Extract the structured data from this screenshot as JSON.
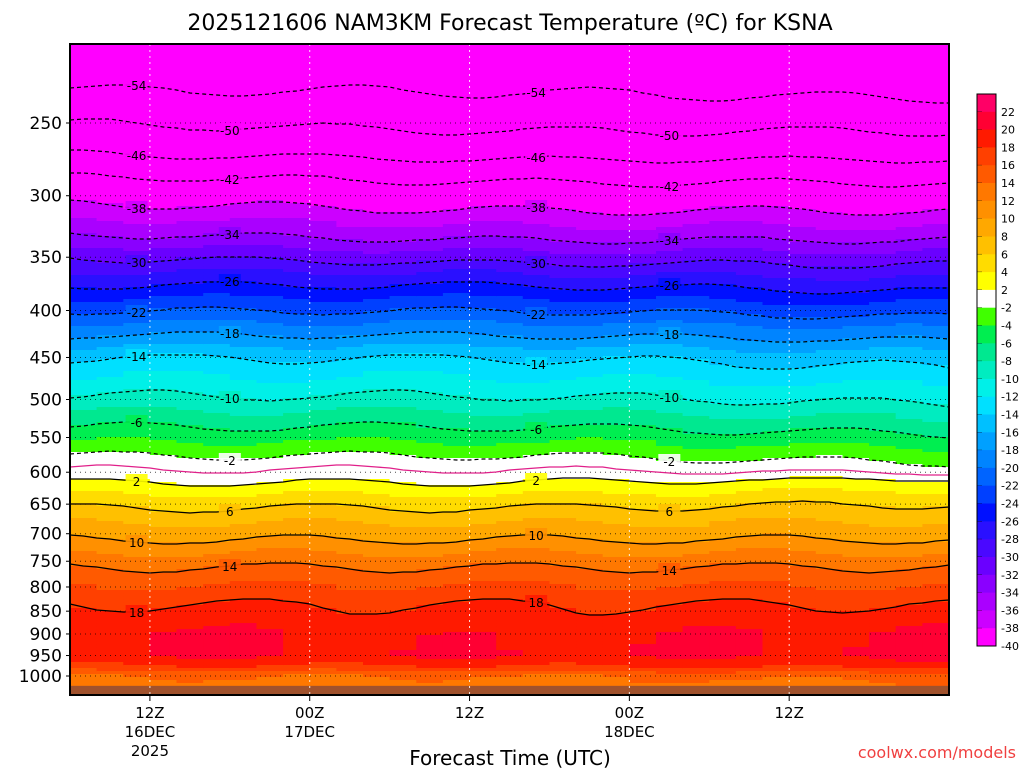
{
  "chart_data": {
    "type": "heatmap",
    "title": "2025121606 NAM3KM Forecast Temperature (ºC) for KSNA",
    "xlabel": "Forecast Time (UTC)",
    "ylabel": "",
    "credit": "coolwx.com/models",
    "x_range_hours": [
      0,
      66
    ],
    "y_range_hpa": [
      205,
      1049
    ],
    "y_ticks": [
      "250",
      "300",
      "350",
      "400",
      "450",
      "500",
      "550",
      "600",
      "650",
      "700",
      "750",
      "800",
      "850",
      "900",
      "950",
      "1000"
    ],
    "x_ticks": [
      {
        "hour": 6,
        "line1": "12Z",
        "line2": "16DEC",
        "line3": "2025"
      },
      {
        "hour": 18,
        "line1": "00Z",
        "line2": "17DEC",
        "line3": ""
      },
      {
        "hour": 30,
        "line1": "12Z",
        "line2": "",
        "line3": ""
      },
      {
        "hour": 42,
        "line1": "00Z",
        "line2": "18DEC",
        "line3": ""
      },
      {
        "hour": 54,
        "line1": "12Z",
        "line2": "",
        "line3": ""
      }
    ],
    "levels_hpa": [
      205,
      225,
      250,
      270,
      285,
      305,
      330,
      350,
      375,
      400,
      425,
      450,
      495,
      535,
      575,
      595,
      615,
      655,
      710,
      760,
      835,
      900,
      950,
      975,
      1000,
      1049
    ],
    "profiles": [
      {
        "hour": 0,
        "temps": [
          -58,
          -55,
          -50,
          -46,
          -42,
          -38,
          -34,
          -30,
          -26,
          -22,
          -18,
          -14,
          -10,
          -6,
          -2,
          0,
          2,
          6,
          10,
          14,
          18,
          20.5,
          20,
          18,
          14,
          12
        ]
      },
      {
        "hour": 33,
        "temps": [
          -58,
          -55,
          -51,
          -47,
          -43,
          -39,
          -35,
          -31,
          -26,
          -22,
          -18,
          -14,
          -10,
          -6,
          -2,
          0,
          2,
          6,
          10,
          14,
          18,
          19.5,
          20,
          18,
          14,
          12
        ]
      },
      {
        "hour": 66,
        "temps": [
          -58,
          -56,
          -51,
          -47,
          -43,
          -39,
          -35,
          -31,
          -27,
          -23,
          -19,
          -15,
          -11,
          -7,
          -3,
          -1,
          3,
          6.5,
          10,
          14,
          18,
          20.5,
          20.5,
          18.5,
          15,
          12
        ]
      }
    ],
    "contour_levels": [
      -54,
      -50,
      -46,
      -42,
      -38,
      -34,
      -30,
      -26,
      -22,
      -18,
      -14,
      -10,
      -6,
      -2,
      2,
      6,
      10,
      14,
      18
    ],
    "colorbar": {
      "labels": [
        "22",
        "20",
        "18",
        "16",
        "14",
        "12",
        "10",
        "8",
        "6",
        "4",
        "2",
        "-2",
        "-4",
        "-6",
        "-8",
        "-10",
        "-12",
        "-14",
        "-16",
        "-18",
        "-20",
        "-22",
        "-24",
        "-26",
        "-28",
        "-30",
        "-32",
        "-34",
        "-36",
        "-38",
        "-40"
      ],
      "bins": [
        {
          "min": 22,
          "color": "#ff0066"
        },
        {
          "min": 20,
          "color": "#ff0033"
        },
        {
          "min": 18,
          "color": "#ff1a00"
        },
        {
          "min": 16,
          "color": "#ff4000"
        },
        {
          "min": 14,
          "color": "#ff5a00"
        },
        {
          "min": 12,
          "color": "#ff7800"
        },
        {
          "min": 10,
          "color": "#ff9000"
        },
        {
          "min": 8,
          "color": "#ffa800"
        },
        {
          "min": 6,
          "color": "#ffc000"
        },
        {
          "min": 4,
          "color": "#ffdc00"
        },
        {
          "min": 2,
          "color": "#ffff00"
        },
        {
          "min": -2,
          "color": "#ffffff"
        },
        {
          "min": -4,
          "color": "#40ff00"
        },
        {
          "min": -6,
          "color": "#00ee50"
        },
        {
          "min": -8,
          "color": "#00e890"
        },
        {
          "min": -10,
          "color": "#00ecc0"
        },
        {
          "min": -12,
          "color": "#00f0e8"
        },
        {
          "min": -14,
          "color": "#00e0ff"
        },
        {
          "min": -16,
          "color": "#00c0ff"
        },
        {
          "min": -18,
          "color": "#00a0ff"
        },
        {
          "min": -20,
          "color": "#0084ff"
        },
        {
          "min": -22,
          "color": "#0064ff"
        },
        {
          "min": -24,
          "color": "#0040ff"
        },
        {
          "min": -26,
          "color": "#0010ff"
        },
        {
          "min": -28,
          "color": "#2a10ff"
        },
        {
          "min": -30,
          "color": "#4a08ff"
        },
        {
          "min": -32,
          "color": "#6a00ff"
        },
        {
          "min": -34,
          "color": "#8a00ff"
        },
        {
          "min": -36,
          "color": "#aa00ff"
        },
        {
          "min": -38,
          "color": "#cc00ff"
        },
        {
          "min": -999,
          "color": "#ff00ff"
        }
      ]
    },
    "ground_color": "#a0522d",
    "ground_below_hpa": 1025
  }
}
